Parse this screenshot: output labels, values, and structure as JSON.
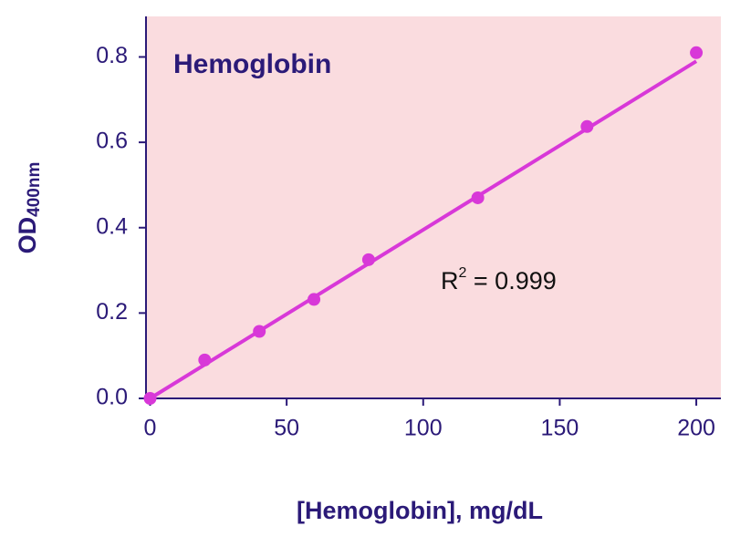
{
  "chart_data": {
    "type": "scatter",
    "title": "Hemoglobin",
    "x_label": "[Hemoglobin], mg/dL",
    "y_label": {
      "main": "OD",
      "sub": "400nm"
    },
    "annotation": {
      "base": "R",
      "sup": "2",
      "text": " = 0.999"
    },
    "x": [
      0,
      20,
      40,
      60,
      80,
      120,
      160,
      200
    ],
    "series": [
      {
        "color": "#d838d8",
        "values": [
          0,
          0.09,
          0.157,
          0.232,
          0.325,
          0.47,
          0.637,
          0.81
        ]
      }
    ],
    "fit_line": {
      "color": "#d838d8",
      "x": [
        0,
        200
      ],
      "values": [
        0,
        0.79
      ]
    },
    "xlim": [
      -1.5,
      209
    ],
    "ylim": [
      0,
      0.895
    ],
    "xticks": [
      0,
      50,
      100,
      150,
      200
    ],
    "yticks": [
      {
        "value": 0,
        "label": "0.0"
      },
      0.2,
      0.4,
      0.6,
      0.8
    ],
    "background": "#fadcdf"
  }
}
